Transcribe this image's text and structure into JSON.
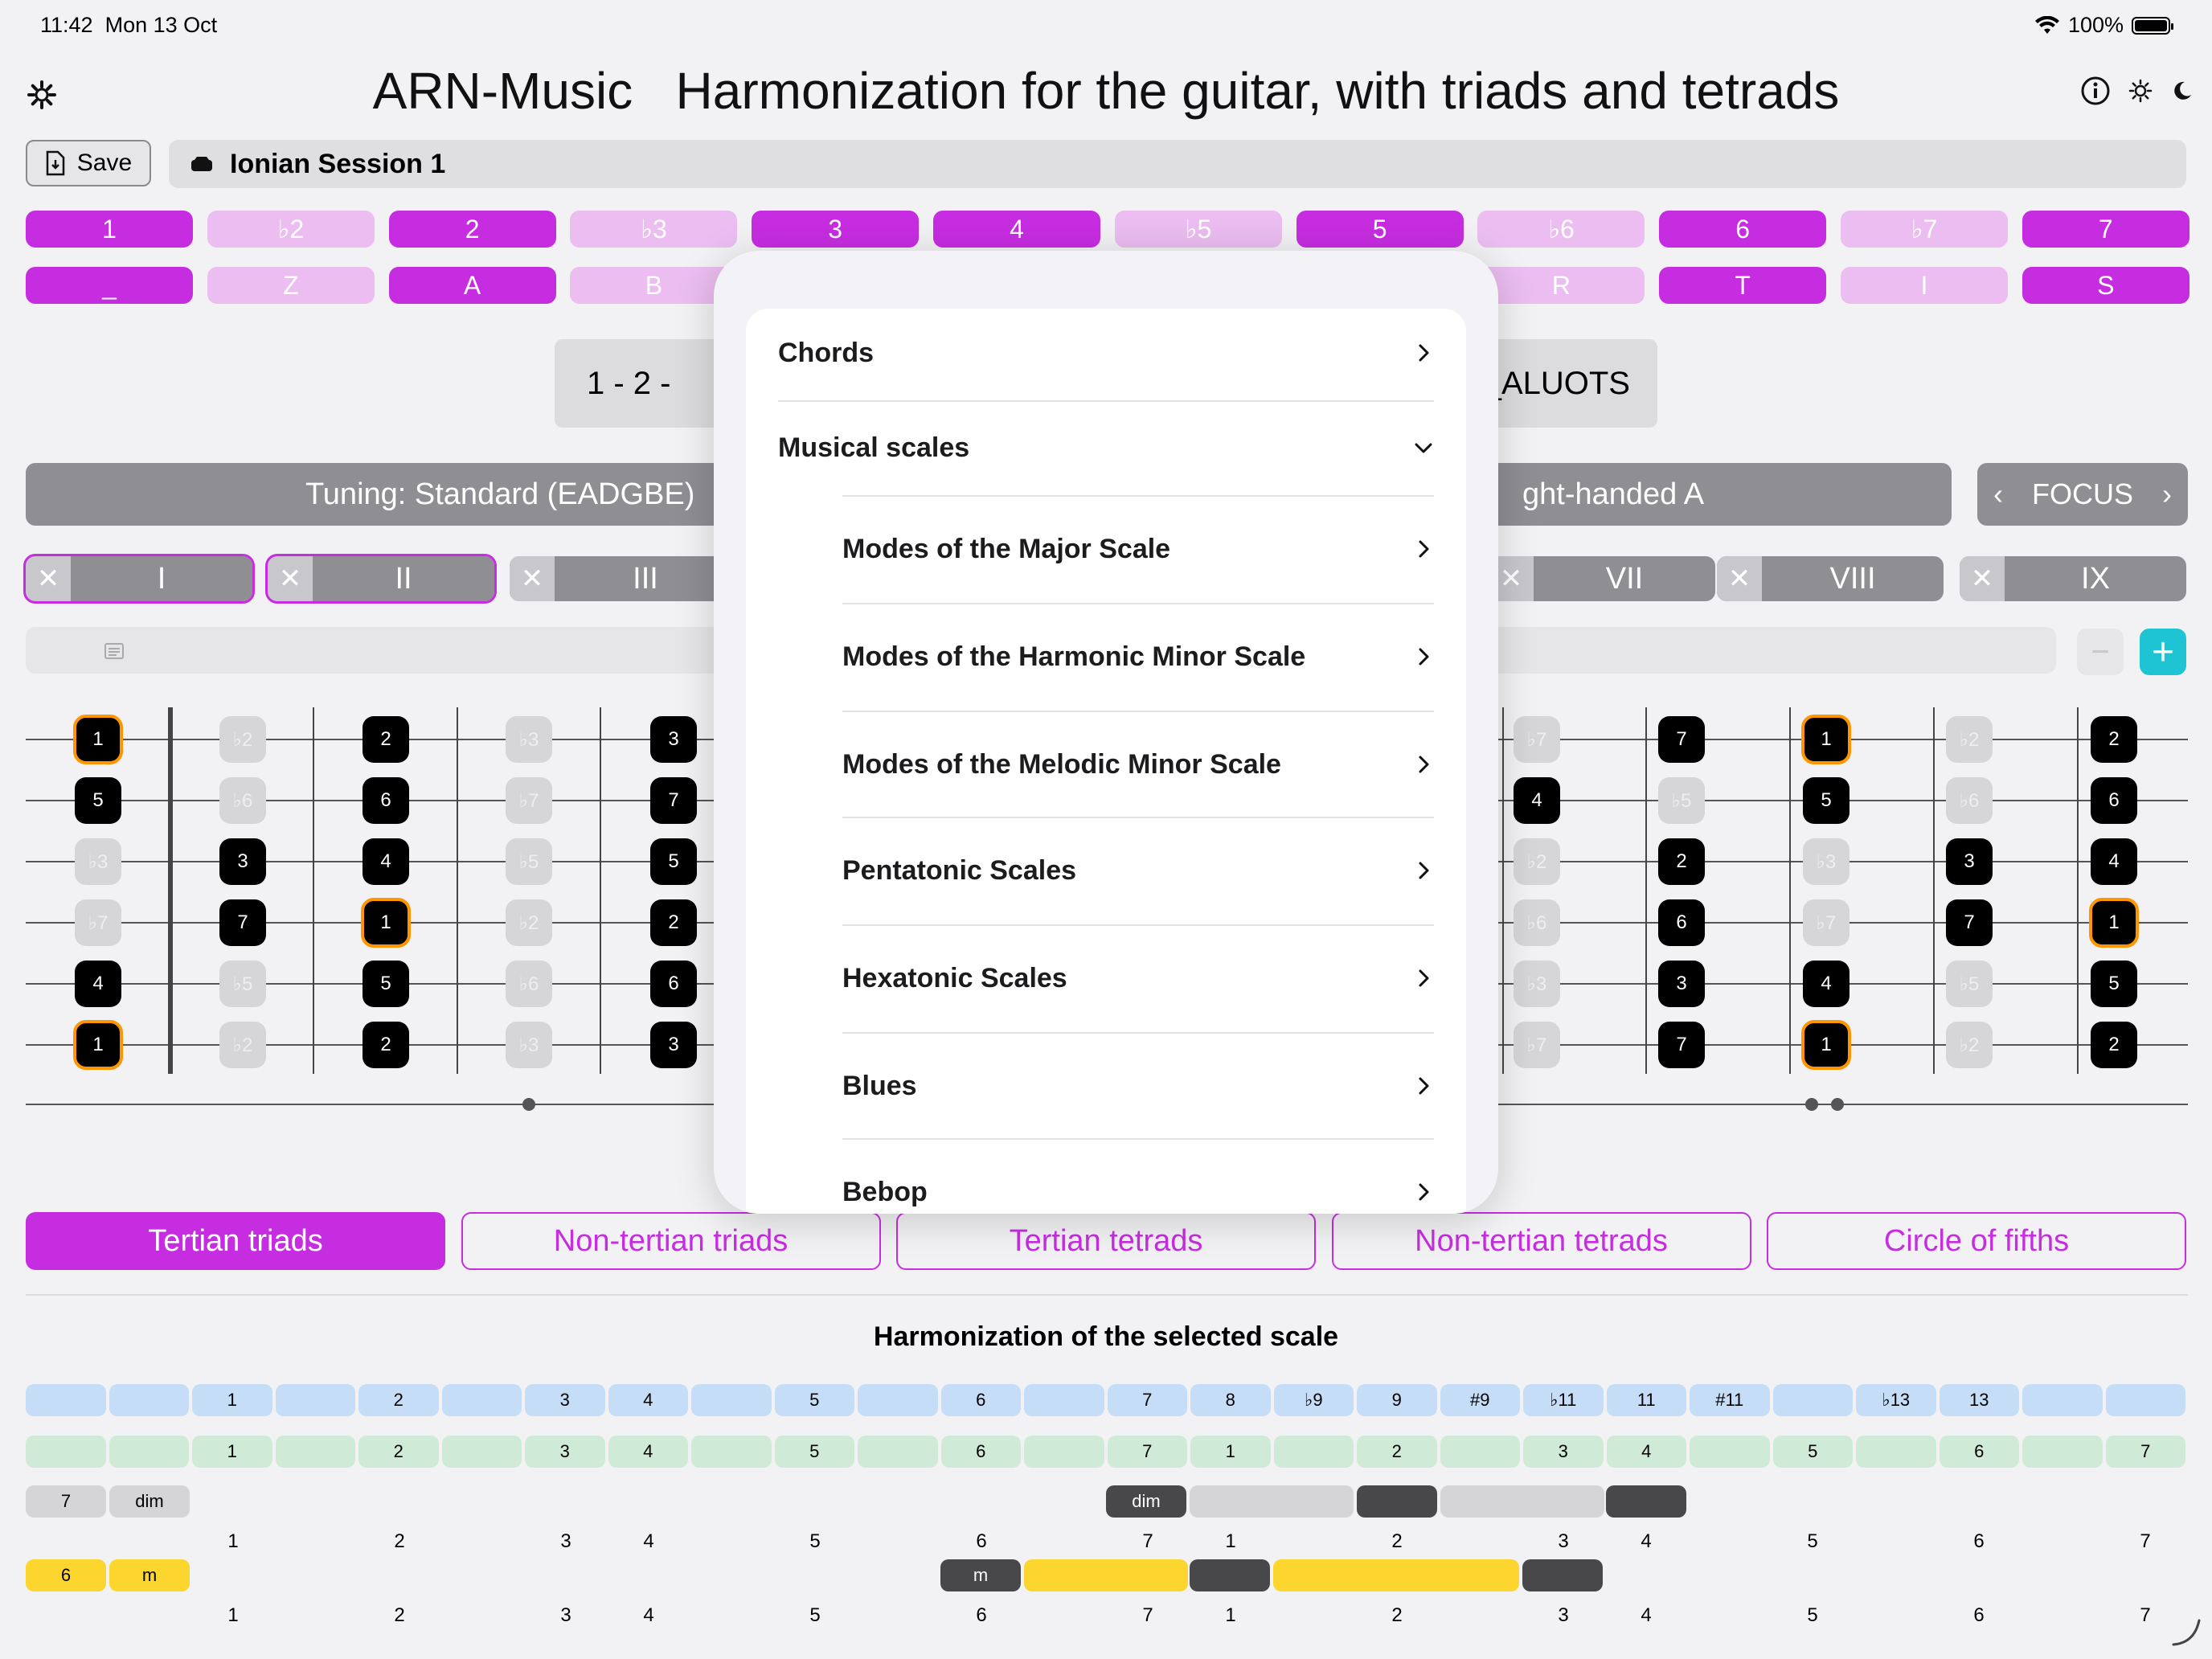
{
  "status": {
    "time": "11:42",
    "date": "Mon 13 Oct",
    "battery": "100%"
  },
  "app": {
    "title": "ARN-Music   Harmonization for the guitar, with triads and tetrads"
  },
  "toolbar": {
    "save_label": "Save",
    "session_name": "Ionian Session 1"
  },
  "degrees_row1": [
    {
      "label": "1",
      "on": true
    },
    {
      "label": "♭2",
      "on": false
    },
    {
      "label": "2",
      "on": true
    },
    {
      "label": "♭3",
      "on": false
    },
    {
      "label": "3",
      "on": true
    },
    {
      "label": "4",
      "on": true
    },
    {
      "label": "♭5",
      "on": false
    },
    {
      "label": "5",
      "on": true
    },
    {
      "label": "♭6",
      "on": false
    },
    {
      "label": "6",
      "on": true
    },
    {
      "label": "♭7",
      "on": false
    },
    {
      "label": "7",
      "on": true
    }
  ],
  "degrees_row2": [
    {
      "label": "_",
      "on": true
    },
    {
      "label": "Z",
      "on": false
    },
    {
      "label": "A",
      "on": true
    },
    {
      "label": "B",
      "on": false
    },
    {
      "label": "",
      "on": true
    },
    {
      "label": "",
      "on": true
    },
    {
      "label": "",
      "on": false
    },
    {
      "label": "",
      "on": true
    },
    {
      "label": "R",
      "on": false
    },
    {
      "label": "T",
      "on": true
    },
    {
      "label": "I",
      "on": false
    },
    {
      "label": "S",
      "on": true
    }
  ],
  "sequence": {
    "left": "1  -  2  -",
    "right": "_ALUOTS"
  },
  "tuning": {
    "label": "Tuning: Standard (EADGBE)",
    "hand": "ght-handed A"
  },
  "focus_label": "FOCUS",
  "positions": [
    {
      "label": "I",
      "selected": true
    },
    {
      "label": "II",
      "selected": true
    },
    {
      "label": "III",
      "selected": false
    },
    {
      "label": "VII",
      "selected": false
    },
    {
      "label": "VIII",
      "selected": false
    },
    {
      "label": "IX",
      "selected": false
    }
  ],
  "stepper": {
    "minus": "−",
    "plus": "+"
  },
  "fretboard": {
    "left_columns": [
      [
        "1",
        "5",
        "♭3",
        "♭7",
        "4",
        "1"
      ],
      [
        "♭2",
        "♭6",
        "3",
        "7",
        "♭5",
        "♭2"
      ],
      [
        "2",
        "6",
        "4",
        "1",
        "5",
        "2"
      ],
      [
        "♭3",
        "♭7",
        "♭5",
        "♭2",
        "♭6",
        "♭3"
      ],
      [
        "3",
        "7",
        "5",
        "2",
        "6",
        "3"
      ]
    ],
    "right_columns": [
      [
        "♭7",
        "4",
        "♭2",
        "♭6",
        "♭3",
        "♭7"
      ],
      [
        "7",
        "♭5",
        "2",
        "6",
        "3",
        "7"
      ],
      [
        "1",
        "5",
        "♭3",
        "♭7",
        "4",
        "1"
      ],
      [
        "♭2",
        "♭6",
        "3",
        "7",
        "♭5",
        "♭2"
      ],
      [
        "2",
        "6",
        "4",
        "1",
        "5",
        "2"
      ]
    ]
  },
  "harmony_tabs": [
    "Tertian triads",
    "Non-tertian triads",
    "Tertian tetrads",
    "Non-tertian tetrads",
    "Circle of fifths"
  ],
  "harmonization": {
    "title": "Harmonization of the selected scale",
    "interval_row": [
      "",
      "",
      "1",
      "",
      "2",
      "",
      "3",
      "4",
      "",
      "5",
      "",
      "6",
      "",
      "7",
      "8",
      "♭9",
      "9",
      "#9",
      "♭11",
      "11",
      "#11",
      "",
      "♭13",
      "13",
      "",
      ""
    ],
    "degree_row": [
      "",
      "",
      "1",
      "",
      "2",
      "",
      "3",
      "4",
      "",
      "5",
      "",
      "6",
      "",
      "7",
      "1",
      "",
      "2",
      "",
      "3",
      "4",
      "",
      "5",
      "",
      "6",
      "",
      "7"
    ],
    "chord1": {
      "degree": "7",
      "quality": "dim",
      "marker": "dim"
    },
    "chord2": {
      "degree": "6",
      "quality": "m",
      "marker": "m"
    },
    "num_labels": [
      "1",
      "2",
      "3",
      "4",
      "5",
      "6",
      "7",
      "1",
      "2",
      "3",
      "4",
      "5",
      "6",
      "7"
    ]
  },
  "popover": {
    "items": [
      {
        "label": "Chords",
        "chevron": "right",
        "indent": false
      },
      {
        "label": "Musical scales",
        "chevron": "down",
        "indent": false
      },
      {
        "label": "Modes of the Major Scale",
        "chevron": "right",
        "indent": true
      },
      {
        "label": "Modes of the Harmonic Minor Scale",
        "chevron": "right",
        "indent": true
      },
      {
        "label": "Modes of the Melodic Minor Scale",
        "chevron": "right",
        "indent": true
      },
      {
        "label": "Pentatonic Scales",
        "chevron": "right",
        "indent": true
      },
      {
        "label": "Hexatonic Scales",
        "chevron": "right",
        "indent": true
      },
      {
        "label": "Blues",
        "chevron": "right",
        "indent": true
      },
      {
        "label": "Bebop",
        "chevron": "right",
        "indent": true
      }
    ]
  },
  "colors": {
    "accent": "#c62de0",
    "accent_light": "#ebbdf0",
    "teal": "#1fc4d4",
    "root_outline": "#ff9500",
    "blue_row": "#c6ddf7",
    "green_row": "#cfead6",
    "yellow": "#fcd62e"
  }
}
